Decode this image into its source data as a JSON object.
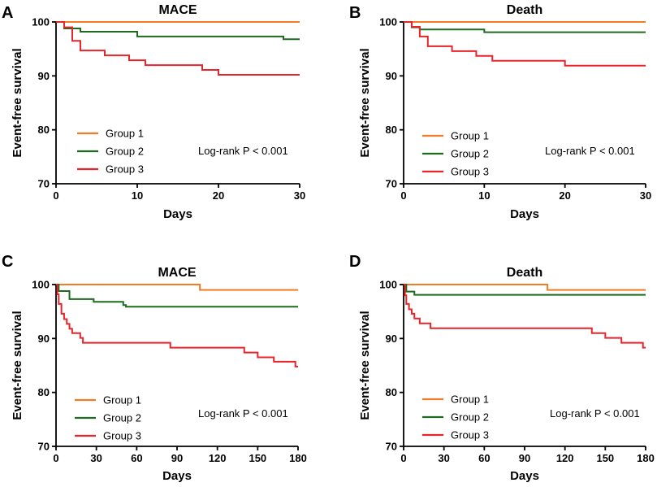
{
  "figure": {
    "panels": [
      {
        "letter": "A",
        "title": "MACE"
      },
      {
        "letter": "B",
        "title": "Death"
      },
      {
        "letter": "C",
        "title": "MACE"
      },
      {
        "letter": "D",
        "title": "Death"
      }
    ]
  },
  "chart_data": [
    {
      "type": "line",
      "title": "MACE",
      "xlabel": "Days",
      "ylabel": "Event-free survival",
      "xlim": [
        0,
        30
      ],
      "ylim": [
        70,
        100
      ],
      "xticks": [
        0,
        10,
        20,
        30
      ],
      "yticks": [
        70,
        80,
        90,
        100
      ],
      "annotation": "Log-rank P < 0.001",
      "series": [
        {
          "name": "Group 1",
          "color": "#f47a24",
          "points": [
            [
              0,
              100
            ],
            [
              30,
              100
            ]
          ]
        },
        {
          "name": "Group 2",
          "color": "#1d6b1d",
          "points": [
            [
              0,
              100
            ],
            [
              1,
              98.8
            ],
            [
              3,
              98.2
            ],
            [
              10,
              97.3
            ],
            [
              28,
              96.8
            ],
            [
              30,
              96.8
            ]
          ]
        },
        {
          "name": "Group 3",
          "color": "#e8252a",
          "points": [
            [
              0,
              100
            ],
            [
              1,
              99.0
            ],
            [
              2,
              96.5
            ],
            [
              3,
              94.7
            ],
            [
              6,
              93.8
            ],
            [
              9,
              92.9
            ],
            [
              11,
              92.0
            ],
            [
              18,
              91.1
            ],
            [
              20,
              90.2
            ],
            [
              30,
              90.2
            ]
          ]
        }
      ]
    },
    {
      "type": "line",
      "title": "Death",
      "xlabel": "Days",
      "ylabel": "Event-free survival",
      "xlim": [
        0,
        30
      ],
      "ylim": [
        70,
        100
      ],
      "xticks": [
        0,
        10,
        20,
        30
      ],
      "yticks": [
        70,
        80,
        90,
        100
      ],
      "annotation": "Log-rank P < 0.001",
      "series": [
        {
          "name": "Group 1",
          "color": "#f47a24",
          "points": [
            [
              0,
              100
            ],
            [
              30,
              100
            ]
          ]
        },
        {
          "name": "Group 2",
          "color": "#1d6b1d",
          "points": [
            [
              0,
              100
            ],
            [
              1,
              99.0
            ],
            [
              2,
              98.6
            ],
            [
              10,
              98.1
            ],
            [
              30,
              98.1
            ]
          ]
        },
        {
          "name": "Group 3",
          "color": "#e8252a",
          "points": [
            [
              0,
              100
            ],
            [
              1,
              99.1
            ],
            [
              2,
              97.3
            ],
            [
              3,
              95.5
            ],
            [
              6,
              94.6
            ],
            [
              9,
              93.7
            ],
            [
              11,
              92.8
            ],
            [
              20,
              91.9
            ],
            [
              30,
              91.9
            ]
          ]
        }
      ]
    },
    {
      "type": "line",
      "title": "MACE",
      "xlabel": "Days",
      "ylabel": "Event-free survival",
      "xlim": [
        0,
        180
      ],
      "ylim": [
        70,
        100
      ],
      "xticks": [
        0,
        30,
        60,
        90,
        120,
        150,
        180
      ],
      "yticks": [
        70,
        80,
        90,
        100
      ],
      "annotation": "Log-rank P < 0.001",
      "series": [
        {
          "name": "Group 1",
          "color": "#f47a24",
          "points": [
            [
              0,
              100
            ],
            [
              107,
              100
            ],
            [
              107,
              99.0
            ],
            [
              180,
              99.0
            ]
          ]
        },
        {
          "name": "Group 2",
          "color": "#1d6b1d",
          "points": [
            [
              0,
              100
            ],
            [
              2,
              98.8
            ],
            [
              10,
              97.3
            ],
            [
              28,
              96.8
            ],
            [
              50,
              96.2
            ],
            [
              52,
              95.9
            ],
            [
              180,
              95.9
            ]
          ]
        },
        {
          "name": "Group 3",
          "color": "#e8252a",
          "points": [
            [
              0,
              100
            ],
            [
              1,
              98.2
            ],
            [
              2,
              96.4
            ],
            [
              4,
              94.6
            ],
            [
              6,
              93.6
            ],
            [
              8,
              92.7
            ],
            [
              10,
              91.8
            ],
            [
              12,
              91.0
            ],
            [
              18,
              90.1
            ],
            [
              20,
              89.2
            ],
            [
              85,
              88.3
            ],
            [
              140,
              87.4
            ],
            [
              150,
              86.5
            ],
            [
              162,
              85.7
            ],
            [
              178,
              84.8
            ],
            [
              180,
              84.8
            ]
          ]
        }
      ]
    },
    {
      "type": "line",
      "title": "Death",
      "xlabel": "Days",
      "ylabel": "Event-free survival",
      "xlim": [
        0,
        180
      ],
      "ylim": [
        70,
        100
      ],
      "xticks": [
        0,
        30,
        60,
        90,
        120,
        150,
        180
      ],
      "yticks": [
        70,
        80,
        90,
        100
      ],
      "annotation": "Log-rank P < 0.001",
      "series": [
        {
          "name": "Group 1",
          "color": "#f47a24",
          "points": [
            [
              0,
              100
            ],
            [
              107,
              100
            ],
            [
              107,
              99.0
            ],
            [
              180,
              99.0
            ]
          ]
        },
        {
          "name": "Group 2",
          "color": "#1d6b1d",
          "points": [
            [
              0,
              100
            ],
            [
              2,
              98.7
            ],
            [
              8,
              98.1
            ],
            [
              180,
              98.1
            ]
          ]
        },
        {
          "name": "Group 3",
          "color": "#e8252a",
          "points": [
            [
              0,
              100
            ],
            [
              1,
              98.0
            ],
            [
              2,
              96.4
            ],
            [
              4,
              95.4
            ],
            [
              6,
              94.6
            ],
            [
              8,
              93.7
            ],
            [
              12,
              92.8
            ],
            [
              20,
              91.9
            ],
            [
              140,
              91.0
            ],
            [
              150,
              90.1
            ],
            [
              162,
              89.2
            ],
            [
              178,
              88.3
            ],
            [
              180,
              88.3
            ]
          ]
        }
      ]
    }
  ]
}
